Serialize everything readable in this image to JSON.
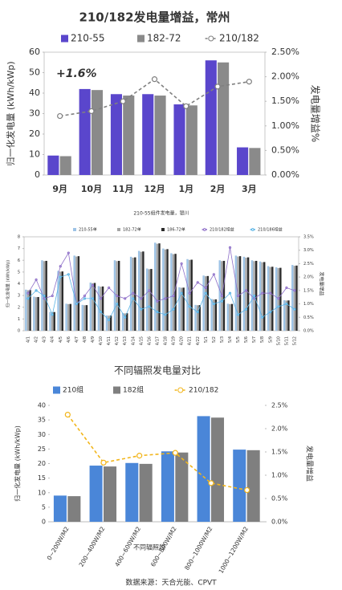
{
  "chart_data": [
    {
      "type": "bar",
      "title": "210/182发电量增益，常州",
      "categories": [
        "9月",
        "10月",
        "11月",
        "12月",
        "1月",
        "2月",
        "3月"
      ],
      "series": [
        {
          "name": "210-55",
          "color": "#5a46cc",
          "values": [
            9.5,
            42,
            39.5,
            39.5,
            34.5,
            56,
            13.5
          ]
        },
        {
          "name": "182-72",
          "color": "#8a8a8a",
          "values": [
            9.2,
            41.5,
            38.8,
            38.8,
            34,
            55,
            13.2
          ]
        },
        {
          "name": "210/182",
          "color": "#808080",
          "axis": "y2",
          "line_style": "dashed",
          "values": [
            1.2,
            1.3,
            1.5,
            1.95,
            1.4,
            1.8,
            1.9
          ]
        }
      ],
      "ylim": [
        0,
        60
      ],
      "yticks": [
        0,
        10,
        20,
        30,
        40,
        50,
        60
      ],
      "y2lim": [
        0,
        2.5
      ],
      "y2ticks": [
        {
          "value": 0,
          "label": "0.00%"
        },
        {
          "value": 0.5,
          "label": "0.50%"
        },
        {
          "value": 1,
          "label": "1.00%"
        },
        {
          "value": 1.5,
          "label": "1.50%"
        },
        {
          "value": 2,
          "label": "2.00%"
        },
        {
          "value": 2.5,
          "label": "2.50%"
        }
      ],
      "ylabel": "归一化发电量 (kWh/kWp)",
      "y2label": "发电量增益%",
      "annotation": "+1.6%"
    },
    {
      "type": "bar",
      "title": "210-55组件发电量，银川",
      "categories": [
        "4/1",
        "4/2",
        "4/3",
        "4/4",
        "4/5",
        "4/6",
        "4/7",
        "4/8",
        "4/9",
        "4/10",
        "4/11",
        "4/12",
        "4/13",
        "4/14",
        "4/15",
        "4/16",
        "4/17",
        "4/18",
        "4/19",
        "4/20",
        "4/21",
        "4/22",
        "5/1",
        "5/2",
        "5/3",
        "5/4",
        "5/5",
        "5/6",
        "5/7",
        "5/8",
        "5/9",
        "5/10",
        "5/11",
        "5/12"
      ],
      "series": [
        {
          "name": "210-55单",
          "color": "#9dc3e6",
          "values": [
            3.5,
            2.9,
            6.0,
            1.6,
            5.1,
            2.3,
            6.4,
            2.2,
            4.1,
            3.8,
            1.3,
            6.0,
            1.5,
            6.3,
            6.8,
            5.3,
            7.5,
            7.0,
            6.6,
            3.7,
            6.1,
            2.2,
            4.7,
            2.7,
            6.0,
            2.3,
            6.4,
            6.3,
            6.0,
            5.9,
            5.5,
            5.4,
            2.6,
            5.6
          ]
        },
        {
          "name": "182-72单",
          "color": "#a5a5a5",
          "values": [
            3.45,
            2.86,
            5.93,
            1.58,
            5.03,
            2.27,
            6.32,
            2.17,
            4.05,
            3.75,
            1.28,
            5.93,
            1.48,
            6.22,
            6.72,
            5.24,
            7.41,
            6.92,
            6.52,
            3.66,
            6.03,
            2.17,
            4.64,
            2.66,
            5.93,
            2.27,
            6.32,
            6.22,
            5.93,
            5.83,
            5.43,
            5.34,
            2.57,
            5.53
          ]
        },
        {
          "name": "186-72单",
          "color": "#2b2b2b",
          "values": [
            3.47,
            2.87,
            5.95,
            1.59,
            5.05,
            2.28,
            6.35,
            2.18,
            4.07,
            3.77,
            1.29,
            5.95,
            1.49,
            6.25,
            6.75,
            5.26,
            7.44,
            6.95,
            6.55,
            3.67,
            6.05,
            2.18,
            4.66,
            2.67,
            5.95,
            2.28,
            6.35,
            6.25,
            5.95,
            5.85,
            5.45,
            5.36,
            2.58,
            5.55
          ]
        },
        {
          "name": "210/182增益",
          "color": "#8e6fc8",
          "axis": "y2",
          "line_style": "solid",
          "values": [
            1.4,
            1.9,
            1.2,
            1.3,
            2.4,
            2.9,
            1.0,
            1.3,
            1.7,
            1.2,
            1.6,
            1.3,
            1.2,
            1.4,
            1.2,
            1.5,
            1.1,
            1.2,
            1.3,
            2.5,
            1.4,
            1.8,
            1.6,
            2.1,
            1.3,
            3.1,
            1.3,
            1.5,
            1.2,
            1.4,
            1.4,
            1.2,
            1.6,
            1.5
          ]
        },
        {
          "name": "210/186增益",
          "color": "#5ab4e5",
          "axis": "y2",
          "line_style": "solid",
          "values": [
            1.2,
            1.5,
            1.3,
            0.6,
            2.0,
            2.1,
            1.0,
            1.2,
            1.2,
            0.7,
            0.4,
            1.0,
            0.5,
            1.2,
            0.8,
            0.9,
            0.7,
            0.6,
            0.8,
            1.4,
            0.9,
            0.7,
            1.4,
            1.0,
            1.1,
            1.4,
            0.6,
            0.8,
            1.3,
            0.5,
            0.7,
            0.9,
            1.0,
            0.8
          ]
        }
      ],
      "ylim": [
        0,
        8
      ],
      "yticks": [
        0,
        1,
        2,
        3,
        4,
        5,
        6,
        7,
        8
      ],
      "y2lim": [
        0,
        3.5
      ],
      "y2ticks": [
        {
          "value": 0,
          "label": "0.0%"
        },
        {
          "value": 0.5,
          "label": "0.5%"
        },
        {
          "value": 1,
          "label": "1.0%"
        },
        {
          "value": 1.5,
          "label": "1.5%"
        },
        {
          "value": 2,
          "label": "2.0%"
        },
        {
          "value": 2.5,
          "label": "2.5%"
        },
        {
          "value": 3,
          "label": "3.0%"
        },
        {
          "value": 3.5,
          "label": "3.5%"
        }
      ],
      "ylabel": "归一化发电量 (kWh/kWp)",
      "y2label": "发电量增益"
    },
    {
      "type": "bar",
      "title": "不同辐照发电量对比",
      "categories": [
        "0~200W/M2",
        "200~400W/M2",
        "400~600W/M2",
        "600~800W/M2",
        "800~1000W/M2",
        "1000~1200W/M2"
      ],
      "series": [
        {
          "name": "210组",
          "color": "#4a86d8",
          "values": [
            9,
            19.3,
            20.2,
            24.2,
            36.3,
            24.8
          ]
        },
        {
          "name": "182组",
          "color": "#7f7f7f",
          "values": [
            8.8,
            19,
            19.9,
            23.8,
            35.8,
            24.6
          ]
        },
        {
          "name": "210/182",
          "color": "#f2b51a",
          "axis": "y2",
          "line_style": "dashed",
          "values": [
            2.3,
            1.27,
            1.42,
            1.48,
            0.83,
            0.68
          ]
        }
      ],
      "ylim": [
        0,
        40
      ],
      "yticks": [
        0,
        5,
        10,
        15,
        20,
        25,
        30,
        35,
        40
      ],
      "y2lim": [
        0,
        2.5
      ],
      "y2ticks": [
        {
          "value": 0,
          "label": "0.0%"
        },
        {
          "value": 0.5,
          "label": "0.5%"
        },
        {
          "value": 1,
          "label": "1.0%"
        },
        {
          "value": 1.5,
          "label": "1.5%"
        },
        {
          "value": 2,
          "label": "2.0%"
        },
        {
          "value": 2.5,
          "label": "2.5%"
        }
      ],
      "ylabel": "归一化发电量 (kWh/kWp)",
      "y2label": "发电量增益",
      "xlabel": "不同辐照段"
    }
  ],
  "source": "数据来源：天合光能、CPVT"
}
